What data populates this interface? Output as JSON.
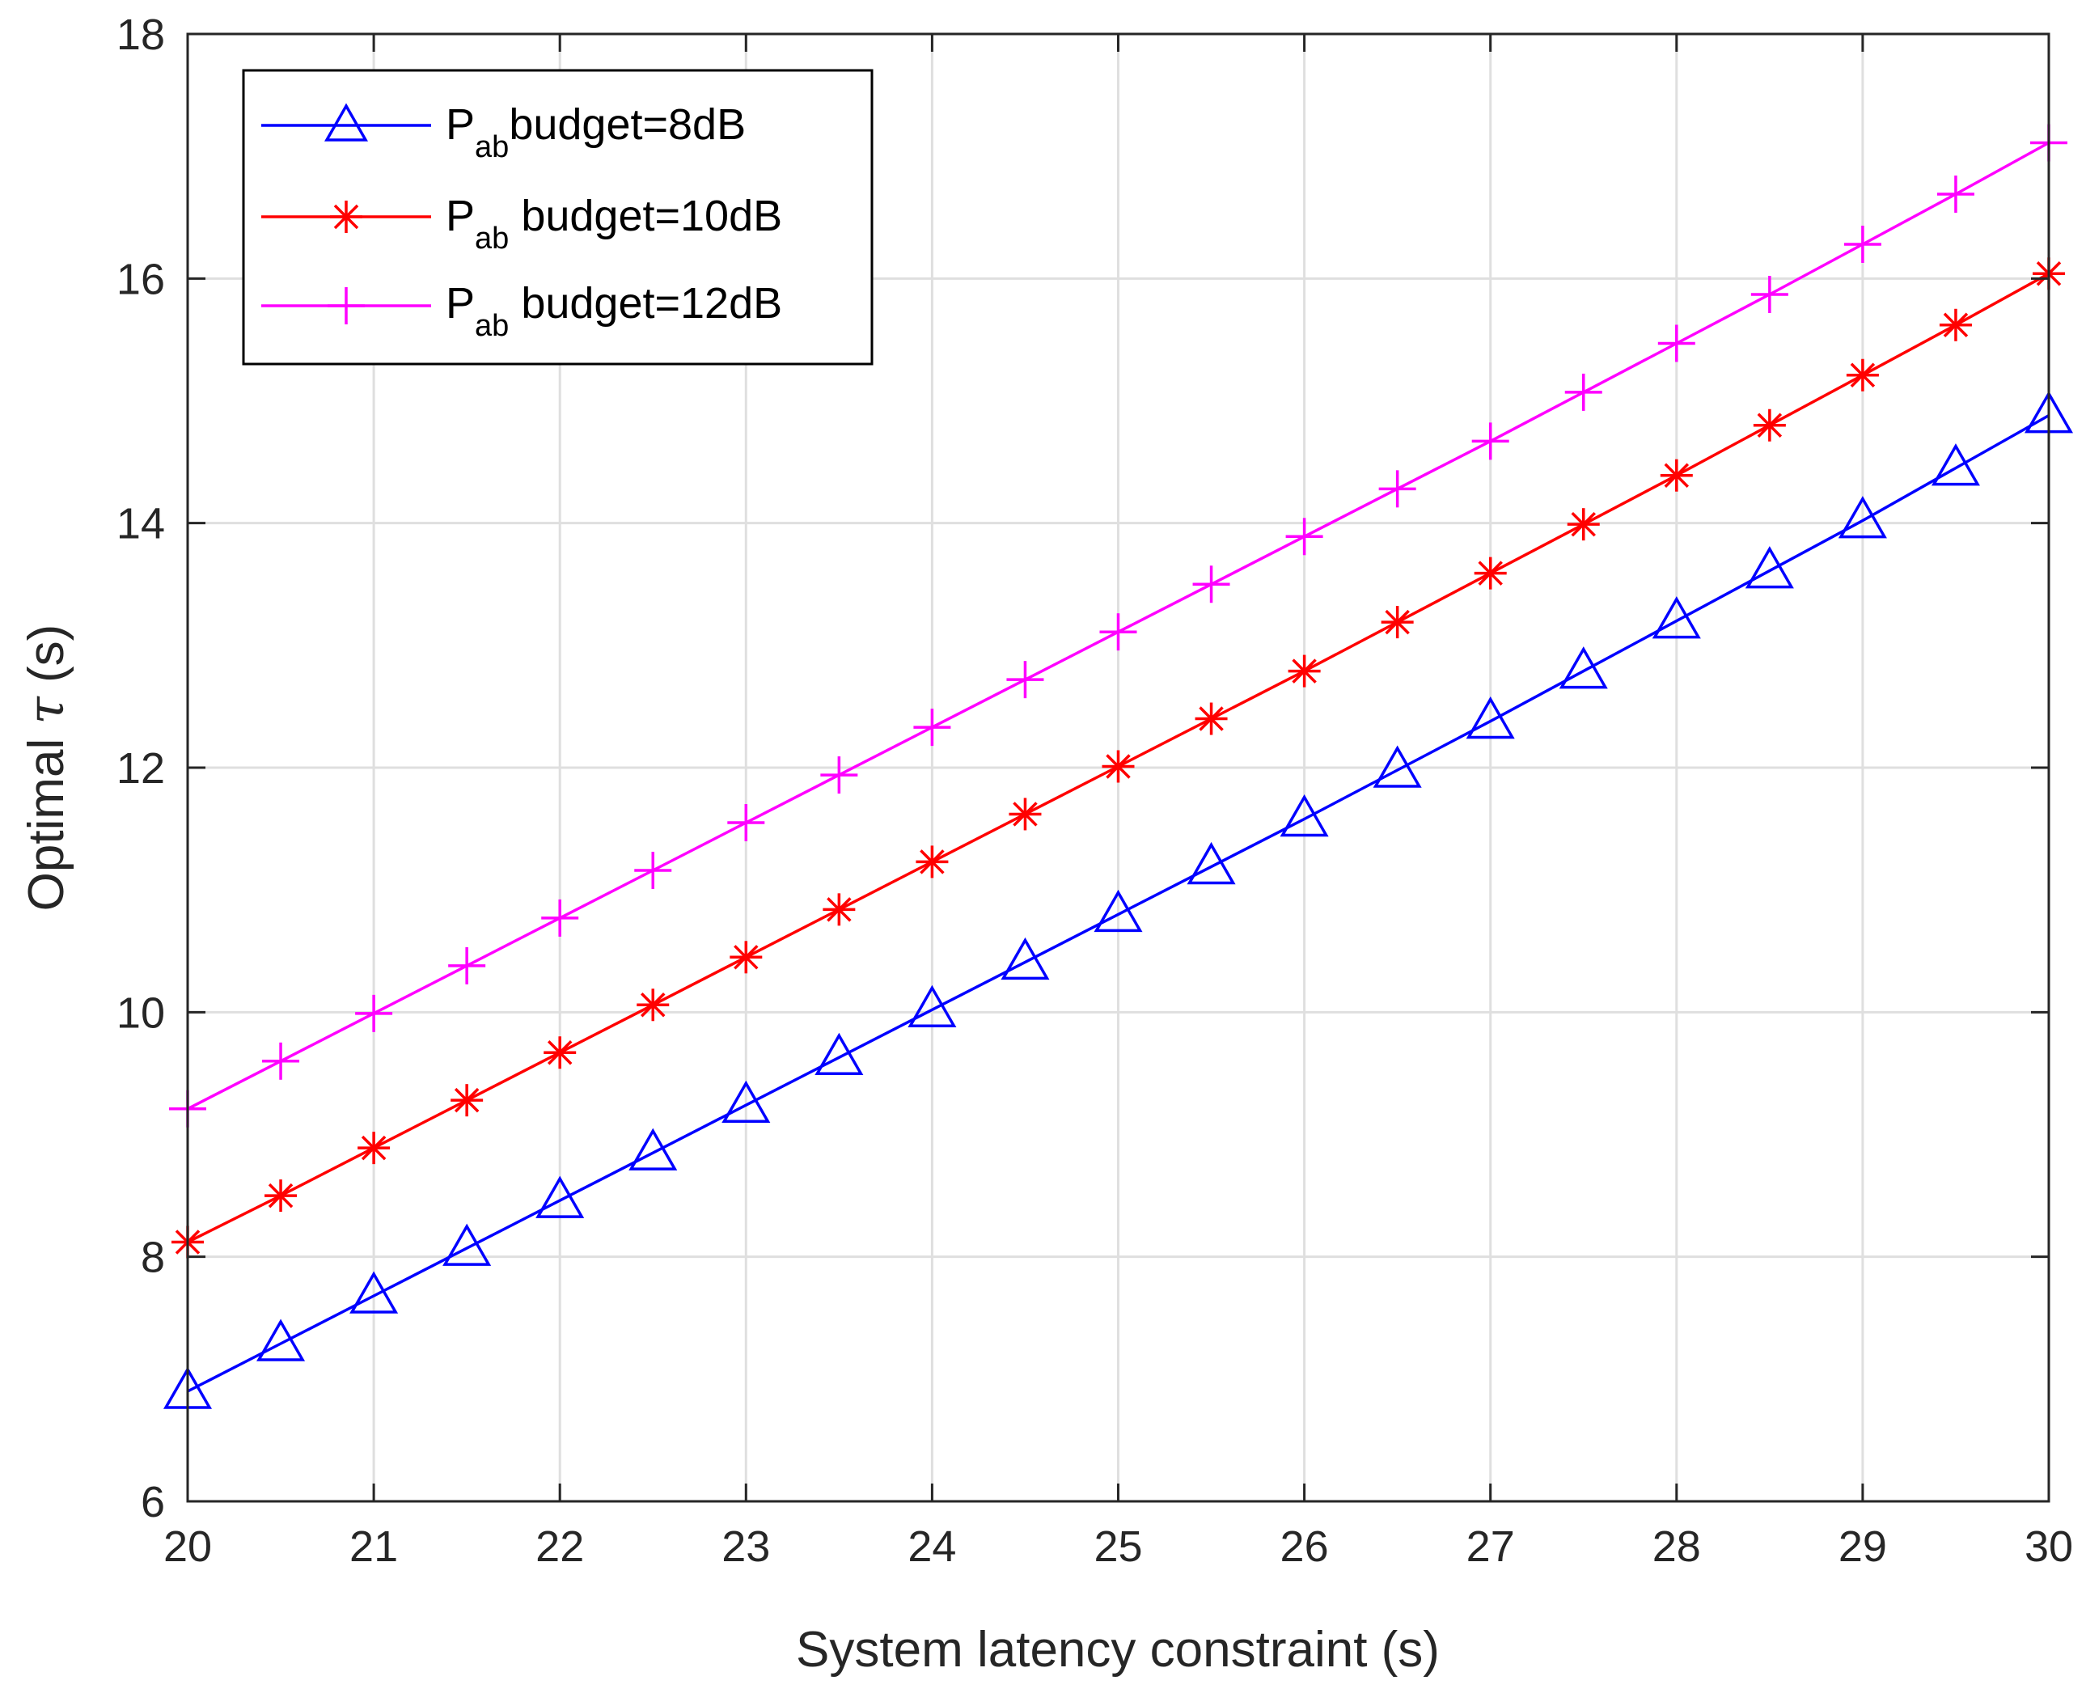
{
  "chart_data": {
    "type": "line",
    "title": "",
    "xlabel": "System latency constraint (s)",
    "ylabel": {
      "prefix": "Optimal ",
      "symbol": "τ",
      "suffix": " (s)"
    },
    "xlim": [
      20,
      30
    ],
    "ylim": [
      6,
      18
    ],
    "xticks": [
      20,
      21,
      22,
      23,
      24,
      25,
      26,
      27,
      28,
      29,
      30
    ],
    "yticks": [
      6,
      8,
      10,
      12,
      14,
      16,
      18
    ],
    "grid": true,
    "legend_position": "top-left",
    "x": [
      20,
      20.5,
      21,
      21.5,
      22,
      22.5,
      23,
      23.5,
      24,
      24.5,
      25,
      25.5,
      26,
      26.5,
      27,
      27.5,
      28,
      28.5,
      29,
      29.5,
      30
    ],
    "series": [
      {
        "name": "P_ab budget=8dB",
        "label_main": "P",
        "label_sub": "ab",
        "label_rest": "budget=8dB",
        "color": "#0000ff",
        "marker": "triangle",
        "values": [
          6.9,
          7.29,
          7.68,
          8.07,
          8.46,
          8.85,
          9.24,
          9.63,
          10.02,
          10.41,
          10.8,
          11.19,
          11.58,
          11.98,
          12.38,
          12.79,
          13.2,
          13.61,
          14.02,
          14.45,
          14.88
        ]
      },
      {
        "name": "P_ab budget=10dB",
        "label_main": "P",
        "label_sub": "ab",
        "label_rest": " budget=10dB",
        "color": "#ff0000",
        "marker": "asterisk",
        "values": [
          8.12,
          8.5,
          8.89,
          9.28,
          9.67,
          10.06,
          10.45,
          10.84,
          11.23,
          11.62,
          12.01,
          12.4,
          12.79,
          13.19,
          13.59,
          13.99,
          14.39,
          14.8,
          15.21,
          15.62,
          16.04
        ]
      },
      {
        "name": "P_ab budget=12dB",
        "label_main": "P",
        "label_sub": "ab",
        "label_rest": " budget=12dB",
        "color": "#ff00ff",
        "marker": "plus",
        "values": [
          9.21,
          9.6,
          9.99,
          10.38,
          10.77,
          11.16,
          11.55,
          11.94,
          12.33,
          12.72,
          13.11,
          13.5,
          13.89,
          14.28,
          14.67,
          15.07,
          15.47,
          15.87,
          16.28,
          16.69,
          17.11
        ]
      }
    ]
  }
}
